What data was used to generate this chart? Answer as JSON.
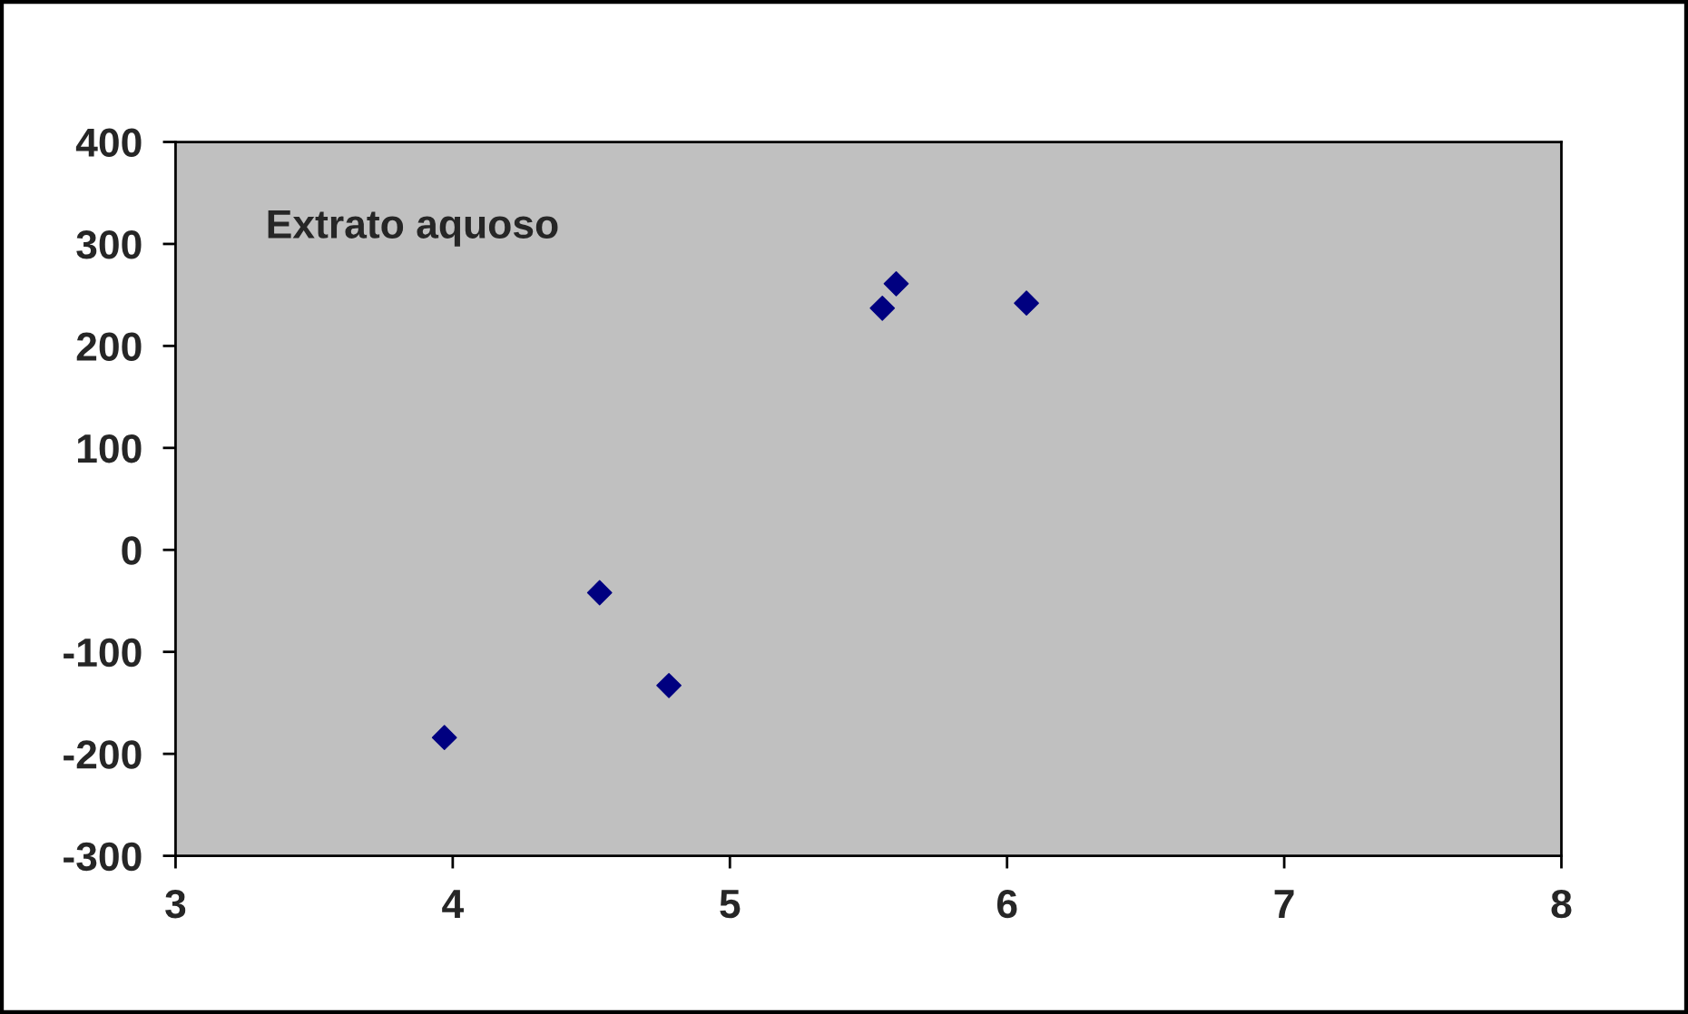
{
  "chart_data": {
    "type": "scatter",
    "annotations": [
      "Extrato aquoso"
    ],
    "series": [
      {
        "color": "#000080",
        "x": [
          3.97,
          4.53,
          4.78,
          5.55,
          5.6,
          6.07
        ],
        "values": [
          -184,
          -42,
          -133,
          237,
          261,
          242
        ]
      }
    ],
    "xlim": [
      3,
      8
    ],
    "xticks": [
      3,
      4,
      5,
      6,
      7,
      8
    ],
    "ylim": [
      -300,
      400
    ],
    "yticks": [
      -300,
      -200,
      -100,
      0,
      100,
      200,
      300,
      400
    ],
    "marker": "diamond",
    "grid": false,
    "legend": false
  }
}
